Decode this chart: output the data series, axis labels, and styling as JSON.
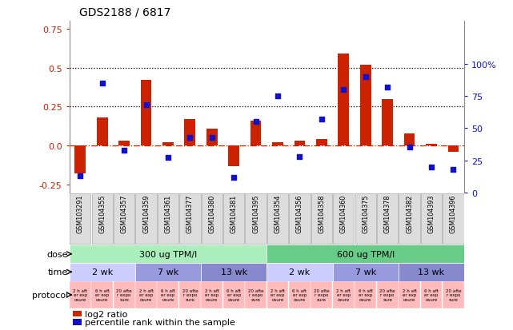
{
  "title": "GDS2188 / 6817",
  "samples": [
    "GSM103291",
    "GSM104355",
    "GSM104357",
    "GSM104359",
    "GSM104361",
    "GSM104377",
    "GSM104380",
    "GSM104381",
    "GSM104395",
    "GSM104354",
    "GSM104356",
    "GSM104358",
    "GSM104360",
    "GSM104375",
    "GSM104378",
    "GSM104382",
    "GSM104393",
    "GSM104396"
  ],
  "log2_ratio": [
    -0.18,
    0.18,
    0.03,
    0.42,
    0.02,
    0.17,
    0.11,
    -0.13,
    0.16,
    0.02,
    0.03,
    0.04,
    0.59,
    0.52,
    0.3,
    0.08,
    0.01,
    -0.04
  ],
  "percentile": [
    13,
    85,
    33,
    68,
    27,
    43,
    43,
    12,
    55,
    75,
    28,
    57,
    80,
    90,
    82,
    35,
    20,
    18
  ],
  "bar_color": "#cc2200",
  "dot_color": "#1111cc",
  "ylim_left": [
    -0.3,
    0.8
  ],
  "ylim_right": [
    0,
    133.33
  ],
  "yticks_left": [
    -0.25,
    0.0,
    0.25,
    0.5,
    0.75
  ],
  "yticks_right": [
    0,
    25,
    50,
    75,
    100
  ],
  "hlines": [
    0.25,
    0.5
  ],
  "dose_groups": [
    {
      "label": "300 ug TPM/l",
      "start": 0,
      "end": 9,
      "color": "#aaeebb"
    },
    {
      "label": "600 ug TPM/l",
      "start": 9,
      "end": 18,
      "color": "#66cc88"
    }
  ],
  "time_groups": [
    {
      "label": "2 wk",
      "start": 0,
      "end": 3,
      "color": "#ccccff"
    },
    {
      "label": "7 wk",
      "start": 3,
      "end": 6,
      "color": "#9999dd"
    },
    {
      "label": "13 wk",
      "start": 6,
      "end": 9,
      "color": "#8888cc"
    },
    {
      "label": "2 wk",
      "start": 9,
      "end": 12,
      "color": "#ccccff"
    },
    {
      "label": "7 wk",
      "start": 12,
      "end": 15,
      "color": "#9999dd"
    },
    {
      "label": "13 wk",
      "start": 15,
      "end": 18,
      "color": "#8888cc"
    }
  ],
  "protocol_color": "#ffbbbb",
  "protocol_border_color": "#ffffff",
  "background_color": "#ffffff",
  "zero_line_color": "#cc2200",
  "hline_color": "#000000",
  "sample_box_color": "#dddddd",
  "sample_box_border": "#aaaaaa",
  "legend_red_label": "log2 ratio",
  "legend_blue_label": "percentile rank within the sample"
}
